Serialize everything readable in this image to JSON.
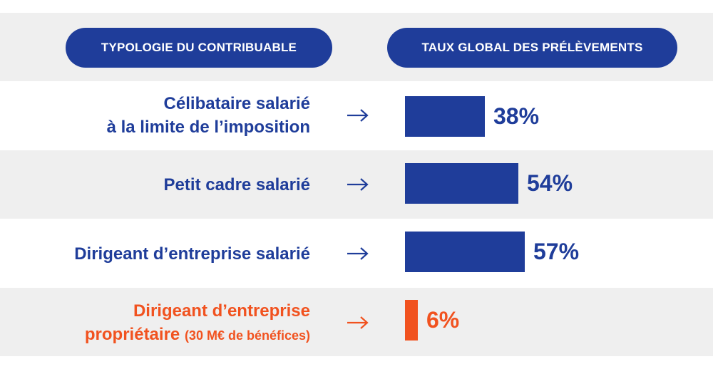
{
  "header": {
    "left_pill": "TYPOLOGIE DU CONTRIBUABLE",
    "right_pill": "TAUX GLOBAL DES PRÉLÈVEMENTS"
  },
  "colors": {
    "primary": "#1f3d9a",
    "highlight": "#f1521f",
    "band": "#efefef"
  },
  "rows": [
    {
      "line1": "Célibataire salarié",
      "line2": "à la limite de l’imposition",
      "value_label": "38%"
    },
    {
      "line1": "Petit cadre salarié",
      "value_label": "54%"
    },
    {
      "line1": "Dirigeant d’entreprise salarié",
      "value_label": "57%"
    },
    {
      "line1": "Dirigeant d’entreprise",
      "line2_main": "propriétaire",
      "line2_small": "(30 M€ de bénéfices)",
      "value_label": "6%"
    }
  ],
  "chart_data": {
    "type": "bar",
    "orientation": "horizontal",
    "categories": [
      "Célibataire salarié à la limite de l’imposition",
      "Petit cadre salarié",
      "Dirigeant d’entreprise salarié",
      "Dirigeant d’entreprise propriétaire (30 M€ de bénéfices)"
    ],
    "values": [
      38,
      54,
      57,
      6
    ],
    "highlighted_index": 3,
    "title": "",
    "xlabel": "",
    "ylabel": ""
  }
}
